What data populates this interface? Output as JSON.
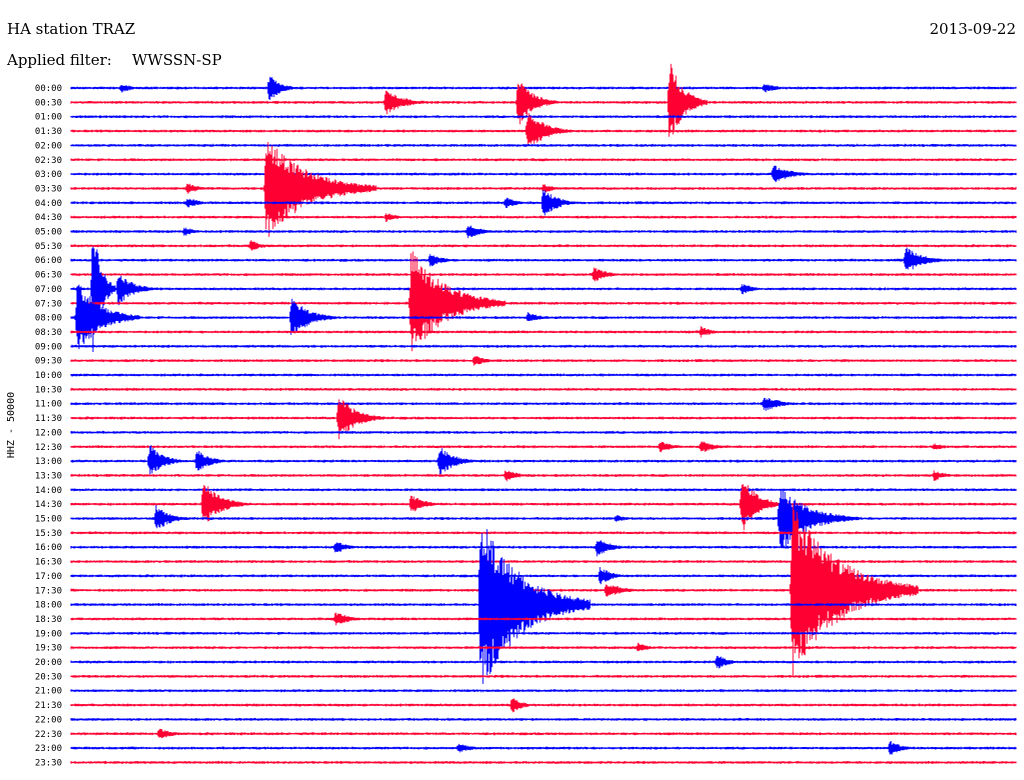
{
  "header": {
    "station": "HA station TRAZ",
    "filter_label": "Applied filter:",
    "filter_value": "WWSSN-SP",
    "date": "2013-09-22"
  },
  "chart_data": {
    "type": "line",
    "ylabel": "HHZ - 50000",
    "colors": [
      "#0000ff",
      "#ff0033"
    ],
    "rows": [
      "00:00",
      "00:30",
      "01:00",
      "01:30",
      "02:00",
      "02:30",
      "03:00",
      "03:30",
      "04:00",
      "04:30",
      "05:00",
      "05:30",
      "06:00",
      "06:30",
      "07:00",
      "07:30",
      "08:00",
      "08:30",
      "09:00",
      "09:30",
      "10:00",
      "10:30",
      "11:00",
      "11:30",
      "12:00",
      "12:30",
      "13:00",
      "13:30",
      "14:00",
      "14:30",
      "15:00",
      "15:30",
      "16:00",
      "16:30",
      "17:00",
      "17:30",
      "18:00",
      "18:30",
      "19:00",
      "19:30",
      "20:00",
      "20:30",
      "21:00",
      "21:30",
      "22:00",
      "22:30",
      "23:00",
      "23:30"
    ],
    "minutes_per_row": 30,
    "events": [
      {
        "row": 0,
        "minute": 1.6,
        "amp": 5,
        "dur": 1.0
      },
      {
        "row": 0,
        "minute": 22.0,
        "amp": 5,
        "dur": 1.2
      },
      {
        "row": 1,
        "minute": 10.0,
        "amp": 14,
        "dur": 1.5
      },
      {
        "row": 1,
        "minute": 14.2,
        "amp": 26,
        "dur": 1.3
      },
      {
        "row": 1,
        "minute": 19.0,
        "amp": 45,
        "dur": 1.2
      },
      {
        "row": 0,
        "minute": 6.3,
        "amp": 14,
        "dur": 1.0
      },
      {
        "row": 3,
        "minute": 14.5,
        "amp": 22,
        "dur": 1.5
      },
      {
        "row": 6,
        "minute": 22.3,
        "amp": 10,
        "dur": 1.5
      },
      {
        "row": 7,
        "minute": 6.2,
        "amp": 55,
        "dur": 3.5
      },
      {
        "row": 7,
        "minute": 3.7,
        "amp": 6,
        "dur": 1.0
      },
      {
        "row": 7,
        "minute": 15.0,
        "amp": 5,
        "dur": 1.0
      },
      {
        "row": 8,
        "minute": 3.7,
        "amp": 6,
        "dur": 1.0
      },
      {
        "row": 8,
        "minute": 13.8,
        "amp": 6,
        "dur": 1.0
      },
      {
        "row": 8,
        "minute": 15.0,
        "amp": 16,
        "dur": 1.2
      },
      {
        "row": 8,
        "minute": 15.2,
        "amp": 6,
        "dur": 1.0
      },
      {
        "row": 9,
        "minute": 10.0,
        "amp": 5,
        "dur": 1.0
      },
      {
        "row": 9,
        "minute": 10.0,
        "amp": 5,
        "dur": 1.0
      },
      {
        "row": 10,
        "minute": 3.6,
        "amp": 5,
        "dur": 1.0
      },
      {
        "row": 10,
        "minute": 12.6,
        "amp": 8,
        "dur": 1.2
      },
      {
        "row": 11,
        "minute": 5.7,
        "amp": 6,
        "dur": 1.0
      },
      {
        "row": 12,
        "minute": 11.4,
        "amp": 7,
        "dur": 1.2
      },
      {
        "row": 12,
        "minute": 26.5,
        "amp": 14,
        "dur": 1.5
      },
      {
        "row": 13,
        "minute": 16.6,
        "amp": 8,
        "dur": 1.2
      },
      {
        "row": 14,
        "minute": 0.7,
        "amp": 70,
        "dur": 0.7
      },
      {
        "row": 14,
        "minute": 1.5,
        "amp": 18,
        "dur": 1.3
      },
      {
        "row": 14,
        "minute": 21.3,
        "amp": 6,
        "dur": 1.0
      },
      {
        "row": 15,
        "minute": 10.8,
        "amp": 55,
        "dur": 3.0
      },
      {
        "row": 16,
        "minute": 0.2,
        "amp": 38,
        "dur": 2.0
      },
      {
        "row": 16,
        "minute": 7.0,
        "amp": 22,
        "dur": 1.5
      },
      {
        "row": 16,
        "minute": 14.5,
        "amp": 6,
        "dur": 1.0
      },
      {
        "row": 17,
        "minute": 20.0,
        "amp": 6,
        "dur": 1.0
      },
      {
        "row": 19,
        "minute": 12.8,
        "amp": 6,
        "dur": 1.0
      },
      {
        "row": 22,
        "minute": 22.0,
        "amp": 8,
        "dur": 1.5
      },
      {
        "row": 23,
        "minute": 8.5,
        "amp": 24,
        "dur": 1.5
      },
      {
        "row": 25,
        "minute": 18.7,
        "amp": 6,
        "dur": 1.2
      },
      {
        "row": 25,
        "minute": 20.0,
        "amp": 7,
        "dur": 1.2
      },
      {
        "row": 25,
        "minute": 27.4,
        "amp": 4,
        "dur": 1.0
      },
      {
        "row": 26,
        "minute": 2.5,
        "amp": 18,
        "dur": 1.2
      },
      {
        "row": 26,
        "minute": 4.0,
        "amp": 12,
        "dur": 1.2
      },
      {
        "row": 26,
        "minute": 11.7,
        "amp": 16,
        "dur": 1.3
      },
      {
        "row": 27,
        "minute": 13.8,
        "amp": 7,
        "dur": 1.0
      },
      {
        "row": 27,
        "minute": 27.4,
        "amp": 6,
        "dur": 1.0
      },
      {
        "row": 29,
        "minute": 4.2,
        "amp": 24,
        "dur": 1.5
      },
      {
        "row": 29,
        "minute": 10.8,
        "amp": 10,
        "dur": 1.2
      },
      {
        "row": 29,
        "minute": 21.3,
        "amp": 30,
        "dur": 1.3
      },
      {
        "row": 30,
        "minute": 2.7,
        "amp": 14,
        "dur": 1.2
      },
      {
        "row": 30,
        "minute": 17.3,
        "amp": 4,
        "dur": 1.0
      },
      {
        "row": 30,
        "minute": 22.5,
        "amp": 35,
        "dur": 2.5
      },
      {
        "row": 32,
        "minute": 8.4,
        "amp": 7,
        "dur": 1.0
      },
      {
        "row": 32,
        "minute": 16.7,
        "amp": 10,
        "dur": 1.2
      },
      {
        "row": 34,
        "minute": 16.8,
        "amp": 10,
        "dur": 1.0
      },
      {
        "row": 35,
        "minute": 17.0,
        "amp": 8,
        "dur": 1.5
      },
      {
        "row": 35,
        "minute": 22.9,
        "amp": 90,
        "dur": 4.0
      },
      {
        "row": 35,
        "minute": 25.0,
        "amp": 6,
        "dur": 1.0
      },
      {
        "row": 36,
        "minute": 13.0,
        "amp": 90,
        "dur": 3.5
      },
      {
        "row": 37,
        "minute": 8.4,
        "amp": 8,
        "dur": 1.2
      },
      {
        "row": 39,
        "minute": 18.0,
        "amp": 5,
        "dur": 1.0
      },
      {
        "row": 40,
        "minute": 20.5,
        "amp": 8,
        "dur": 1.0
      },
      {
        "row": 43,
        "minute": 14.0,
        "amp": 8,
        "dur": 1.0
      },
      {
        "row": 45,
        "minute": 2.8,
        "amp": 6,
        "dur": 1.2
      },
      {
        "row": 46,
        "minute": 12.3,
        "amp": 5,
        "dur": 1.2
      },
      {
        "row": 46,
        "minute": 26.0,
        "amp": 8,
        "dur": 1.0
      }
    ]
  }
}
